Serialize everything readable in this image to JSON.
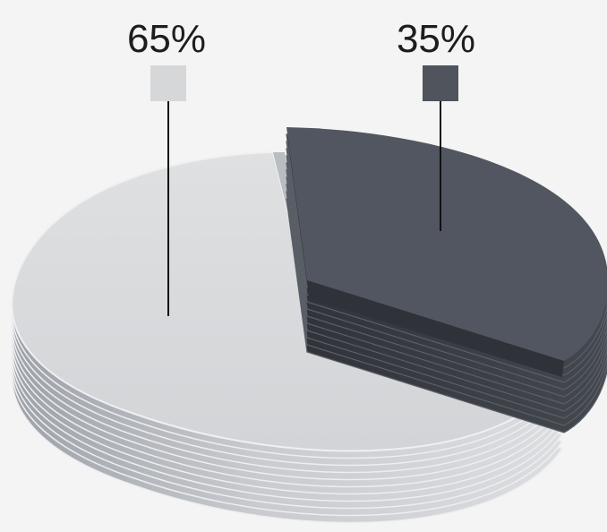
{
  "chart_data": {
    "type": "pie",
    "style": "3d-exploded",
    "slices": [
      {
        "label": "65%",
        "value": 65,
        "color": "#d6d7d9"
      },
      {
        "label": "35%",
        "value": 35,
        "color": "#50545c"
      }
    ]
  }
}
